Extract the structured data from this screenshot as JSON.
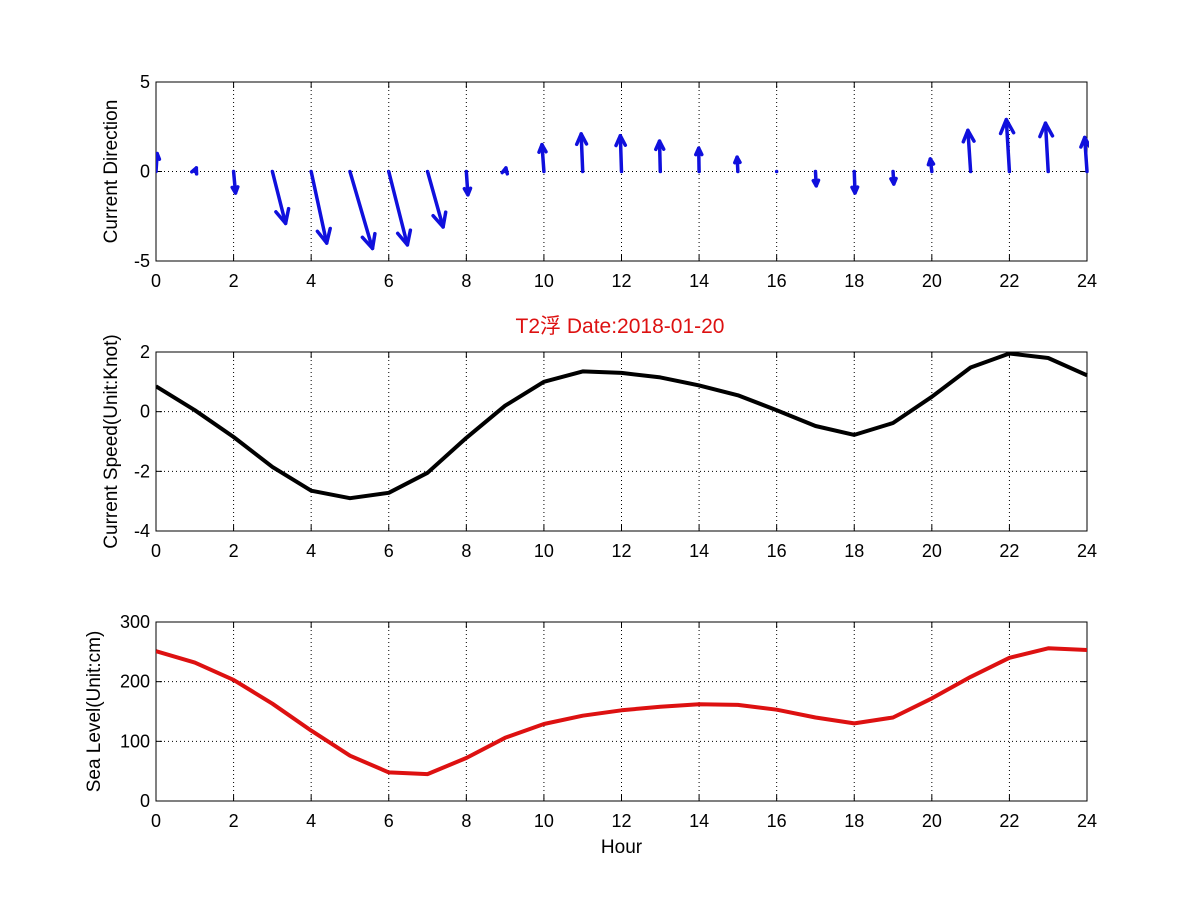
{
  "figure": {
    "title": "T2浮    Date:2018-01-20",
    "title_color": "#dd1111"
  },
  "chart_data": [
    {
      "type": "quiver",
      "name": "current-direction",
      "ylabel": "Current Direction",
      "xlabel": "",
      "xlim": [
        0,
        24
      ],
      "ylim": [
        -5,
        5
      ],
      "xticks": [
        0,
        2,
        4,
        6,
        8,
        10,
        12,
        14,
        16,
        18,
        20,
        22,
        24
      ],
      "yticks": [
        -5,
        0,
        5
      ],
      "grid": true,
      "color": "#1010dd",
      "x": [
        0,
        1,
        2,
        3,
        4,
        5,
        6,
        7,
        8,
        9,
        10,
        11,
        12,
        13,
        14,
        15,
        16,
        17,
        18,
        19,
        20,
        21,
        22,
        23,
        24
      ],
      "u": [
        0.03,
        0.04,
        0.05,
        0.34,
        0.4,
        0.58,
        0.48,
        0.4,
        0.04,
        0.02,
        -0.05,
        -0.04,
        -0.03,
        -0.02,
        -0.01,
        -0.02,
        0,
        0.02,
        0.02,
        0.02,
        -0.04,
        -0.07,
        -0.08,
        -0.07,
        -0.06
      ],
      "v": [
        1.0,
        0.2,
        -1.2,
        -2.9,
        -4.0,
        -4.3,
        -4.1,
        -3.1,
        -1.3,
        0.2,
        1.5,
        2.1,
        2.0,
        1.7,
        1.3,
        0.8,
        0.0,
        -0.8,
        -1.2,
        -0.7,
        0.7,
        2.3,
        2.9,
        2.7,
        1.9
      ]
    },
    {
      "type": "line",
      "name": "current-speed",
      "ylabel": "Current Speed(Unit:Knot)",
      "xlabel": "",
      "xlim": [
        0,
        24
      ],
      "ylim": [
        -4,
        2
      ],
      "xticks": [
        0,
        2,
        4,
        6,
        8,
        10,
        12,
        14,
        16,
        18,
        20,
        22,
        24
      ],
      "yticks": [
        -4,
        -2,
        0,
        2
      ],
      "grid": true,
      "color": "#000000",
      "x": [
        0,
        1,
        2,
        3,
        4,
        5,
        6,
        7,
        8,
        9,
        10,
        11,
        12,
        13,
        14,
        15,
        16,
        17,
        18,
        19,
        20,
        21,
        22,
        23,
        24
      ],
      "y": [
        0.85,
        0.05,
        -0.85,
        -1.85,
        -2.65,
        -2.9,
        -2.72,
        -2.05,
        -0.88,
        0.2,
        1.0,
        1.35,
        1.3,
        1.15,
        0.88,
        0.55,
        0.05,
        -0.48,
        -0.78,
        -0.38,
        0.5,
        1.48,
        1.95,
        1.8,
        1.22
      ]
    },
    {
      "type": "line",
      "name": "sea-level",
      "ylabel": "Sea Level(Unit:cm)",
      "xlabel": "Hour",
      "xlim": [
        0,
        24
      ],
      "ylim": [
        0,
        300
      ],
      "xticks": [
        0,
        2,
        4,
        6,
        8,
        10,
        12,
        14,
        16,
        18,
        20,
        22,
        24
      ],
      "yticks": [
        0,
        100,
        200,
        300
      ],
      "grid": true,
      "color": "#dd1111",
      "x": [
        0,
        1,
        2,
        3,
        4,
        5,
        6,
        7,
        8,
        9,
        10,
        11,
        12,
        13,
        14,
        15,
        16,
        17,
        18,
        19,
        20,
        21,
        22,
        23,
        24
      ],
      "y": [
        251,
        232,
        203,
        163,
        118,
        76,
        48,
        45,
        72,
        106,
        129,
        143,
        152,
        158,
        162,
        161,
        153,
        140,
        130,
        140,
        172,
        208,
        240,
        256,
        253
      ]
    }
  ]
}
